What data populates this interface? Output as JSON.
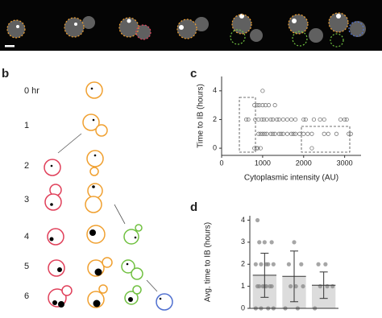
{
  "panel_labels": [
    "b",
    "c",
    "d"
  ],
  "diagram": {
    "rows": [
      "0 hr",
      "1",
      "2",
      "3",
      "4",
      "5",
      "6"
    ]
  },
  "chart_data": [
    {
      "type": "scatter",
      "xlabel": "Cytoplasmic intensity (AU)",
      "ylabel": "Time to IB (hours)",
      "x": [
        1000,
        800,
        870,
        920,
        1000,
        1070,
        1150,
        1300,
        600,
        650,
        820,
        900,
        980,
        1030,
        1100,
        1200,
        1250,
        1350,
        1400,
        1500,
        1600,
        1700,
        1800,
        2000,
        2050,
        2250,
        2400,
        2500,
        2900,
        3000,
        3050,
        900,
        950,
        1000,
        1050,
        1100,
        1200,
        1250,
        1300,
        1400,
        1450,
        1500,
        1600,
        1700,
        1750,
        1800,
        1900,
        2000,
        2100,
        2200,
        2500,
        2600,
        2800,
        3100,
        3150,
        800,
        850,
        880,
        950,
        2200
      ],
      "y": [
        4,
        3,
        3,
        3,
        3,
        3,
        3,
        3,
        2,
        2,
        2,
        2,
        2,
        2,
        2,
        2,
        2,
        2,
        2,
        2,
        2,
        2,
        2,
        2,
        2,
        2,
        2,
        2,
        2,
        2,
        2,
        1,
        1,
        1,
        1,
        1,
        1,
        1,
        1,
        1,
        1,
        1,
        1,
        1,
        1,
        1,
        1,
        1,
        1,
        1,
        1,
        1,
        1,
        1,
        1,
        0,
        0,
        0,
        0,
        0
      ],
      "xlim": [
        0,
        3400
      ],
      "ylim": [
        -0.5,
        5
      ],
      "xticks": [
        0,
        1000,
        2000,
        3000
      ],
      "yticks": [
        0,
        2,
        4
      ],
      "color": "#777777"
    },
    {
      "type": "bar",
      "ylabel": "Avg. time to IB (hours)",
      "categories": [
        null,
        null,
        null
      ],
      "values": [
        1.5,
        1.45,
        1.05
      ],
      "errors": [
        1.0,
        1.15,
        0.6
      ],
      "points": [
        [
          0,
          0,
          0,
          0,
          1,
          1,
          1,
          1,
          1,
          1,
          1,
          2,
          2,
          2,
          2,
          2,
          3,
          3,
          3,
          4
        ],
        [
          0,
          0,
          1,
          1,
          1,
          2,
          2,
          3
        ],
        [
          0,
          1,
          1,
          1,
          2,
          2
        ]
      ],
      "ylim": [
        0,
        4.2
      ],
      "yticks": [
        0,
        1,
        2,
        3,
        4
      ],
      "color": "#dcdcdc"
    }
  ]
}
